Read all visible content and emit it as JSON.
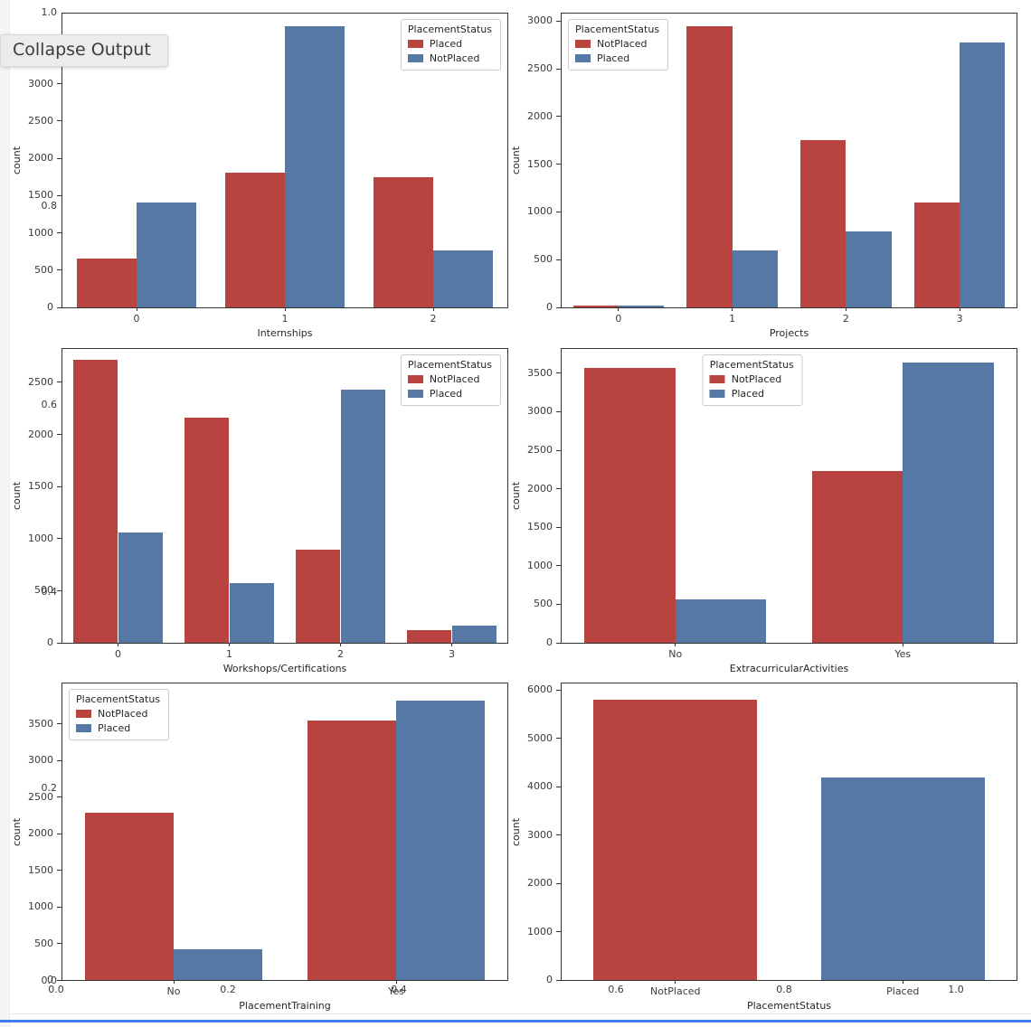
{
  "ui": {
    "collapse_button": "Collapse Output"
  },
  "palette": {
    "red": "#b8433f",
    "blue": "#5579a4"
  },
  "overlay_axis": {
    "y_tick_labels": [
      "1.0",
      "0.8",
      "0.6",
      "0.4",
      "0.2",
      "0.0"
    ],
    "x_tick_labels": [
      "0.0",
      "0.2",
      "0.4",
      "0.6",
      "0.8",
      "1.0"
    ]
  },
  "chart_data": [
    {
      "type": "bar",
      "name": "internships",
      "xlabel": "Internships",
      "ylabel": "count",
      "categories": [
        "0",
        "1",
        "2"
      ],
      "series": [
        {
          "name": "Placed",
          "color_key": "red",
          "values": [
            660,
            1810,
            1740
          ]
        },
        {
          "name": "NotPlaced",
          "color_key": "blue",
          "values": [
            1410,
            3770,
            760
          ]
        }
      ],
      "ylim": [
        0,
        3940
      ],
      "yticks": [
        0,
        500,
        1000,
        1500,
        2000,
        2500,
        3000
      ],
      "legend": {
        "title": "PlacementStatus",
        "position": "upper right"
      },
      "grid": false
    },
    {
      "type": "bar",
      "name": "projects",
      "xlabel": "Projects",
      "ylabel": "count",
      "categories": [
        "0",
        "1",
        "2",
        "3"
      ],
      "series": [
        {
          "name": "NotPlaced",
          "color_key": "red",
          "values": [
            20,
            2950,
            1750,
            1100
          ]
        },
        {
          "name": "Placed",
          "color_key": "blue",
          "values": [
            20,
            600,
            800,
            2780
          ]
        }
      ],
      "ylim": [
        0,
        3080
      ],
      "yticks": [
        0,
        500,
        1000,
        1500,
        2000,
        2500,
        3000
      ],
      "legend": {
        "title": "PlacementStatus",
        "position": "upper left"
      },
      "grid": false
    },
    {
      "type": "bar",
      "name": "workshops-certifications",
      "xlabel": "Workshops/Certifications",
      "ylabel": "count",
      "categories": [
        "0",
        "1",
        "2",
        "3"
      ],
      "series": [
        {
          "name": "NotPlaced",
          "color_key": "red",
          "values": [
            2720,
            2160,
            895,
            120
          ]
        },
        {
          "name": "Placed",
          "color_key": "blue",
          "values": [
            1060,
            570,
            2430,
            165
          ]
        }
      ],
      "ylim": [
        0,
        2820
      ],
      "yticks": [
        0,
        500,
        1000,
        1500,
        2000,
        2500
      ],
      "legend": {
        "title": "PlacementStatus",
        "position": "upper right"
      },
      "grid": false
    },
    {
      "type": "bar",
      "name": "extracurricular-activities",
      "xlabel": "ExtracurricularActivities",
      "ylabel": "count",
      "categories": [
        "No",
        "Yes"
      ],
      "series": [
        {
          "name": "NotPlaced",
          "color_key": "red",
          "values": [
            3570,
            2230
          ]
        },
        {
          "name": "Placed",
          "color_key": "blue",
          "values": [
            565,
            3640
          ]
        }
      ],
      "ylim": [
        0,
        3815
      ],
      "yticks": [
        0,
        500,
        1000,
        1500,
        2000,
        2500,
        3000,
        3500
      ],
      "legend": {
        "title": "PlacementStatus",
        "position": "upper center"
      },
      "grid": false
    },
    {
      "type": "bar",
      "name": "placement-training",
      "xlabel": "PlacementTraining",
      "ylabel": "count",
      "categories": [
        "No",
        "Yes"
      ],
      "series": [
        {
          "name": "NotPlaced",
          "color_key": "red",
          "values": [
            2280,
            3545
          ]
        },
        {
          "name": "Placed",
          "color_key": "blue",
          "values": [
            420,
            3810
          ]
        }
      ],
      "ylim": [
        0,
        4050
      ],
      "yticks": [
        0,
        500,
        1000,
        1500,
        2000,
        2500,
        3000,
        3500
      ],
      "legend": {
        "title": "PlacementStatus",
        "position": "upper left"
      },
      "grid": false
    },
    {
      "type": "bar",
      "name": "placement-status",
      "xlabel": "PlacementStatus",
      "ylabel": "count",
      "categories": [
        "NotPlaced",
        "Placed"
      ],
      "series": [
        {
          "name": "NotPlaced",
          "color_key": "red",
          "values": [
            5800,
            null
          ]
        },
        {
          "name": "Placed",
          "color_key": "blue",
          "values": [
            null,
            4200
          ]
        }
      ],
      "ylim": [
        0,
        6140
      ],
      "yticks": [
        0,
        1000,
        2000,
        3000,
        4000,
        5000,
        6000
      ],
      "legend": null,
      "grid": false
    }
  ]
}
